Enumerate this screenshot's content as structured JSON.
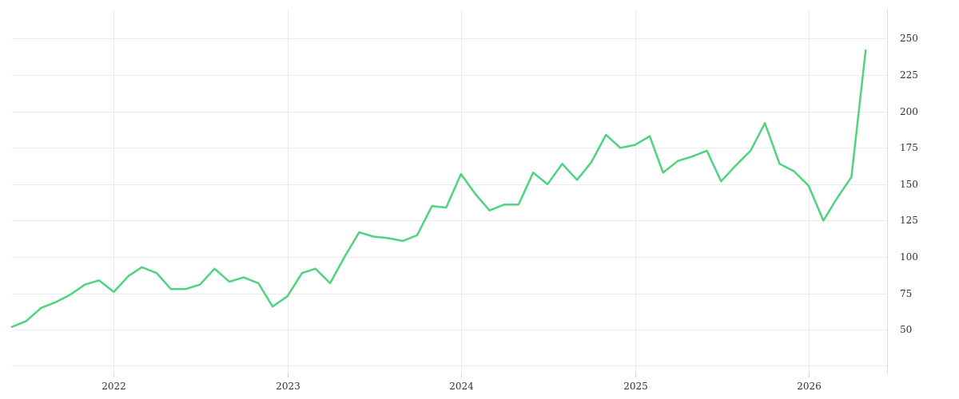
{
  "chart_data": {
    "type": "line",
    "title": "",
    "xlabel": "",
    "ylabel": "",
    "x_axis": {
      "type": "date",
      "range": [
        "2021-06-01",
        "2026-06-15"
      ],
      "tick_labels": [
        "2022",
        "2023",
        "2024",
        "2025",
        "2026"
      ],
      "tick_dates": [
        "2022-01-01",
        "2023-01-01",
        "2024-01-01",
        "2025-01-01",
        "2026-01-01"
      ]
    },
    "y_axis": {
      "position": "right",
      "range": [
        20,
        270
      ],
      "tick_labels": [
        "50",
        "75",
        "100",
        "125",
        "150",
        "175",
        "200",
        "225",
        "250"
      ],
      "tick_values": [
        50,
        75,
        100,
        125,
        150,
        175,
        200,
        225,
        250
      ]
    },
    "grid": true,
    "legend": "none",
    "colors": {
      "series": "#4fd37e",
      "grid": "#ececec",
      "axis": "#d9d9d9",
      "text": "#333333"
    },
    "series": [
      {
        "x": [
          "2021-06-01",
          "2021-07-01",
          "2021-08-01",
          "2021-09-01",
          "2021-10-01",
          "2021-11-01",
          "2021-12-01",
          "2022-01-01",
          "2022-02-01",
          "2022-03-01",
          "2022-04-01",
          "2022-05-01",
          "2022-06-01",
          "2022-07-01",
          "2022-08-01",
          "2022-09-01",
          "2022-10-01",
          "2022-11-01",
          "2022-12-01",
          "2023-01-01",
          "2023-02-01",
          "2023-03-01",
          "2023-04-01",
          "2023-05-01",
          "2023-06-01",
          "2023-07-01",
          "2023-08-01",
          "2023-09-01",
          "2023-10-01",
          "2023-11-01",
          "2023-12-01",
          "2024-01-01",
          "2024-02-01",
          "2024-03-01",
          "2024-04-01",
          "2024-05-01",
          "2024-06-01",
          "2024-07-01",
          "2024-08-01",
          "2024-09-01",
          "2024-10-01",
          "2024-11-01",
          "2024-12-01",
          "2025-01-01",
          "2025-02-01",
          "2025-03-01",
          "2025-04-01",
          "2025-05-01",
          "2025-06-01",
          "2025-07-01",
          "2025-08-01",
          "2025-09-01",
          "2025-10-01",
          "2025-11-01",
          "2025-12-01",
          "2026-01-01",
          "2026-02-01",
          "2026-03-01",
          "2026-04-01",
          "2026-05-01"
        ],
        "values": [
          52,
          56,
          65,
          69,
          74,
          81,
          84,
          76,
          87,
          93,
          89,
          78,
          78,
          81,
          92,
          83,
          86,
          82,
          66,
          73,
          89,
          92,
          82,
          100,
          117,
          114,
          113,
          111,
          115,
          135,
          134,
          157,
          143,
          132,
          136,
          136,
          158,
          150,
          164,
          153,
          165,
          184,
          175,
          177,
          183,
          158,
          166,
          169,
          173,
          152,
          163,
          173,
          192,
          164,
          159,
          149,
          125,
          140,
          155,
          242
        ]
      }
    ]
  }
}
